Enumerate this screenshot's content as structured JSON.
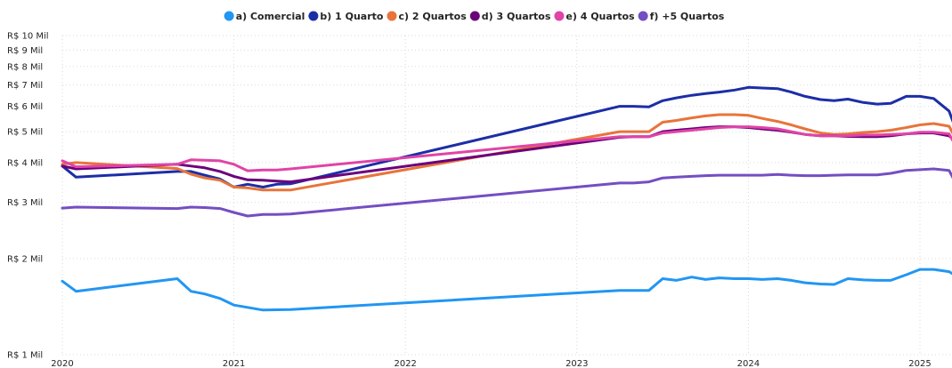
{
  "chart_data": {
    "type": "line",
    "title": "",
    "xlabel": "",
    "ylabel": "",
    "y_scale": "log",
    "ylim": [
      1000,
      10000
    ],
    "xlim": [
      2020.0,
      2025.2
    ],
    "grid": true,
    "legend_position": "top",
    "x_ticks": [
      2020,
      2021,
      2022,
      2023,
      2024,
      2025
    ],
    "x_tick_labels": [
      "2020",
      "2021",
      "2022",
      "2023",
      "2024",
      "2025"
    ],
    "y_ticks": [
      1000,
      2000,
      3000,
      4000,
      5000,
      6000,
      7000,
      8000,
      9000,
      10000
    ],
    "y_tick_labels": [
      "R$ 1 Mil",
      "R$ 2 Mil",
      "R$ 3 Mil",
      "R$ 4 Mil",
      "R$ 5 Mil",
      "R$ 6 Mil",
      "R$ 7 Mil",
      "R$ 8 Mil",
      "R$ 9 Mil",
      "R$ 10 Mil"
    ],
    "series": [
      {
        "name": "a) Comercial",
        "color": "#2196F3",
        "x": [
          2020.0,
          2020.08,
          2020.67,
          2020.75,
          2020.83,
          2020.92,
          2021.0,
          2021.17,
          2021.33,
          2023.25,
          2023.33,
          2023.42,
          2023.5,
          2023.58,
          2023.67,
          2023.75,
          2023.83,
          2023.92,
          2024.0,
          2024.08,
          2024.17,
          2024.25,
          2024.33,
          2024.42,
          2024.5,
          2024.58,
          2024.67,
          2024.75,
          2024.83,
          2024.92,
          2025.0,
          2025.08,
          2025.17,
          2025.2
        ],
        "y": [
          1700,
          1580,
          1730,
          1580,
          1550,
          1500,
          1430,
          1380,
          1385,
          1590,
          1590,
          1590,
          1730,
          1710,
          1750,
          1720,
          1740,
          1730,
          1730,
          1720,
          1730,
          1710,
          1680,
          1665,
          1660,
          1730,
          1715,
          1710,
          1710,
          1780,
          1850,
          1850,
          1820,
          1780
        ]
      },
      {
        "name": "b) 1 Quarto",
        "color": "#1C2EA6",
        "x": [
          2020.0,
          2020.08,
          2020.67,
          2020.75,
          2020.83,
          2020.92,
          2021.0,
          2021.08,
          2021.17,
          2021.25,
          2021.33,
          2023.25,
          2023.33,
          2023.42,
          2023.5,
          2023.58,
          2023.67,
          2023.75,
          2023.83,
          2023.92,
          2024.0,
          2024.08,
          2024.17,
          2024.25,
          2024.33,
          2024.42,
          2024.5,
          2024.58,
          2024.67,
          2024.75,
          2024.83,
          2024.92,
          2025.0,
          2025.08,
          2025.17,
          2025.2
        ],
        "y": [
          3900,
          3600,
          3750,
          3750,
          3650,
          3550,
          3350,
          3420,
          3350,
          3420,
          3430,
          6000,
          6000,
          5980,
          6250,
          6380,
          6500,
          6580,
          6650,
          6750,
          6880,
          6850,
          6820,
          6650,
          6450,
          6300,
          6250,
          6320,
          6170,
          6100,
          6130,
          6450,
          6450,
          6350,
          5800,
          5250
        ]
      },
      {
        "name": "c) 2 Quartos",
        "color": "#E8743B",
        "x": [
          2020.0,
          2020.08,
          2020.67,
          2020.75,
          2020.83,
          2020.92,
          2021.0,
          2021.08,
          2021.17,
          2021.25,
          2021.33,
          2023.25,
          2023.33,
          2023.42,
          2023.5,
          2023.58,
          2023.67,
          2023.75,
          2023.83,
          2023.92,
          2024.0,
          2024.08,
          2024.17,
          2024.25,
          2024.33,
          2024.42,
          2024.5,
          2024.58,
          2024.67,
          2024.75,
          2024.83,
          2024.92,
          2025.0,
          2025.08,
          2025.17,
          2025.2
        ],
        "y": [
          3950,
          4000,
          3830,
          3680,
          3580,
          3520,
          3350,
          3330,
          3280,
          3280,
          3280,
          5000,
          5000,
          5000,
          5350,
          5420,
          5520,
          5600,
          5650,
          5650,
          5620,
          5500,
          5380,
          5250,
          5100,
          4950,
          4900,
          4920,
          4970,
          5000,
          5050,
          5150,
          5250,
          5300,
          5200,
          4850
        ]
      },
      {
        "name": "d) 3 Quartos",
        "color": "#6B007B",
        "x": [
          2020.0,
          2020.08,
          2020.67,
          2020.75,
          2020.83,
          2020.92,
          2021.0,
          2021.08,
          2021.17,
          2021.25,
          2021.33,
          2023.25,
          2023.33,
          2023.42,
          2023.5,
          2023.58,
          2023.67,
          2023.75,
          2023.83,
          2023.92,
          2024.0,
          2024.08,
          2024.17,
          2024.25,
          2024.33,
          2024.42,
          2024.5,
          2024.58,
          2024.67,
          2024.75,
          2024.83,
          2024.92,
          2025.0,
          2025.08,
          2025.17,
          2025.2
        ],
        "y": [
          3900,
          3820,
          3950,
          3900,
          3850,
          3750,
          3620,
          3530,
          3520,
          3500,
          3480,
          4800,
          4820,
          4820,
          5000,
          5050,
          5100,
          5150,
          5180,
          5180,
          5150,
          5100,
          5050,
          4980,
          4900,
          4850,
          4850,
          4830,
          4820,
          4820,
          4850,
          4920,
          4950,
          4950,
          4850,
          4700
        ]
      },
      {
        "name": "e) 4 Quartos",
        "color": "#E044A7",
        "x": [
          2020.0,
          2020.08,
          2020.67,
          2020.75,
          2020.83,
          2020.92,
          2021.0,
          2021.08,
          2021.17,
          2021.25,
          2021.33,
          2023.25,
          2023.33,
          2023.42,
          2023.5,
          2023.58,
          2023.67,
          2023.75,
          2023.83,
          2023.92,
          2024.0,
          2024.08,
          2024.17,
          2024.25,
          2024.33,
          2024.42,
          2024.5,
          2024.58,
          2024.67,
          2024.75,
          2024.83,
          2024.92,
          2025.0,
          2025.08,
          2025.17,
          2025.2
        ],
        "y": [
          4050,
          3880,
          3950,
          4080,
          4070,
          4050,
          3950,
          3770,
          3790,
          3790,
          3820,
          4820,
          4820,
          4820,
          4950,
          5000,
          5050,
          5100,
          5150,
          5180,
          5180,
          5150,
          5100,
          5000,
          4900,
          4850,
          4850,
          4850,
          4880,
          4880,
          4900,
          4920,
          4980,
          4980,
          4920,
          4600
        ]
      },
      {
        "name": "f) +5 Quartos",
        "color": "#744EC2",
        "x": [
          2020.0,
          2020.08,
          2020.67,
          2020.75,
          2020.83,
          2020.92,
          2021.0,
          2021.08,
          2021.17,
          2021.25,
          2021.33,
          2023.25,
          2023.33,
          2023.42,
          2023.5,
          2023.58,
          2023.67,
          2023.75,
          2023.83,
          2023.92,
          2024.0,
          2024.08,
          2024.17,
          2024.25,
          2024.33,
          2024.42,
          2024.5,
          2024.58,
          2024.67,
          2024.75,
          2024.83,
          2024.92,
          2025.0,
          2025.08,
          2025.17,
          2025.2
        ],
        "y": [
          2880,
          2900,
          2870,
          2900,
          2890,
          2870,
          2790,
          2720,
          2750,
          2750,
          2760,
          3450,
          3450,
          3480,
          3580,
          3600,
          3620,
          3640,
          3650,
          3650,
          3650,
          3650,
          3670,
          3650,
          3640,
          3640,
          3650,
          3660,
          3660,
          3660,
          3700,
          3780,
          3800,
          3820,
          3780,
          3520
        ]
      }
    ]
  }
}
